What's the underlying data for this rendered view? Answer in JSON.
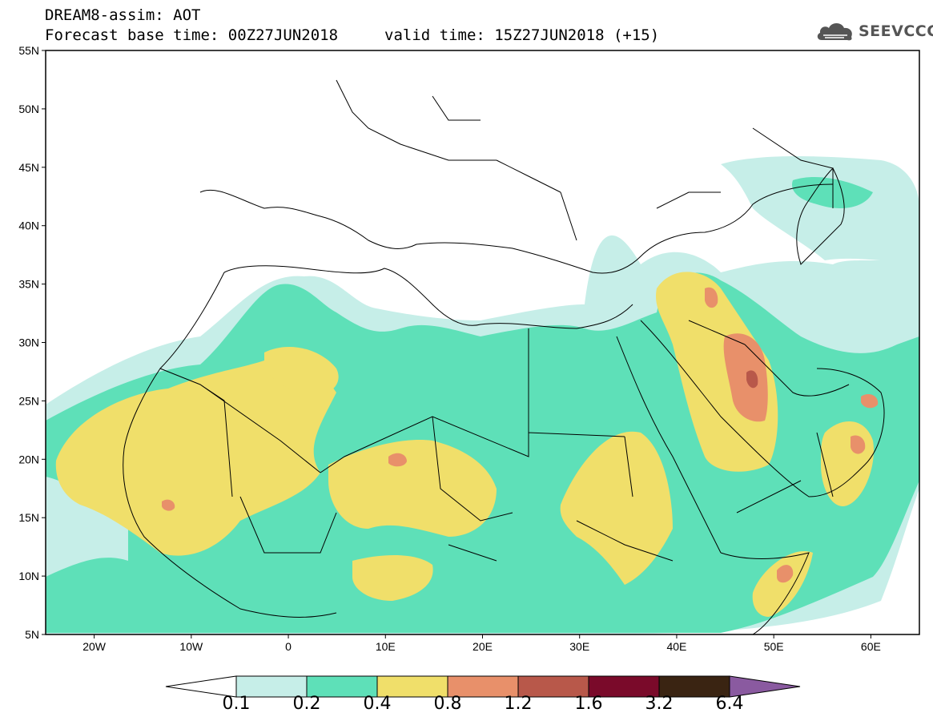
{
  "header": {
    "line1": "DREAM8-assim: AOT",
    "line2": "Forecast base time: 00Z27JUN2018",
    "valid_time": "valid time: 15Z27JUN2018 (+15)",
    "logo_text": "SEEVCCC",
    "logo_icon": "cloud-icon"
  },
  "map": {
    "lon_range": [
      -25,
      65
    ],
    "lat_range": [
      5,
      55
    ],
    "lat_ticks": [
      "55N",
      "50N",
      "45N",
      "40N",
      "35N",
      "30N",
      "25N",
      "20N",
      "15N",
      "10N",
      "5N"
    ],
    "lon_ticks": [
      "20W",
      "10W",
      "0",
      "10E",
      "20E",
      "30E",
      "40E",
      "50E",
      "60E"
    ],
    "field_colors": [
      "#c6eee8",
      "#5ee0b8",
      "#f0df6a",
      "#e8906a",
      "#b8584a"
    ],
    "land_color": "#ffffff",
    "border_color": "#000000"
  },
  "colorbar": {
    "levels": [
      "0.1",
      "0.2",
      "0.4",
      "0.8",
      "1.2",
      "1.6",
      "3.2",
      "6.4"
    ],
    "colors": [
      "#ffffff",
      "#c6eee8",
      "#5ee0b8",
      "#f0df6a",
      "#e8906a",
      "#b8584a",
      "#7a0a2a",
      "#3a2412",
      "#8a5aa0"
    ]
  }
}
